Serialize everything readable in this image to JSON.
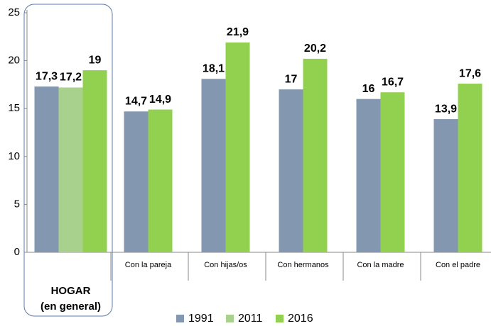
{
  "chart_data": {
    "type": "bar",
    "categories": [
      "HOGAR (en general)",
      "Con la pareja",
      "Con hijas/os",
      "Con hermanos",
      "Con la madre",
      "Con el padre"
    ],
    "series": [
      {
        "name": "1991",
        "color": "#8497b0",
        "values": [
          17.3,
          14.7,
          18.1,
          17,
          16,
          13.9
        ],
        "value_labels": [
          "17,3",
          "14,7",
          "18,1",
          "17",
          "16",
          "13,9"
        ]
      },
      {
        "name": "2011",
        "color": "#a9d18e",
        "values": [
          17.2,
          null,
          null,
          null,
          null,
          null
        ],
        "value_labels": [
          "17,2",
          null,
          null,
          null,
          null,
          null
        ]
      },
      {
        "name": "2016",
        "color": "#92d050",
        "values": [
          19,
          14.9,
          21.9,
          20.2,
          16.7,
          17.6
        ],
        "value_labels": [
          "19",
          "14,9",
          "21,9",
          "20,2",
          "16,7",
          "17,6"
        ]
      }
    ],
    "ylim": [
      0,
      25
    ],
    "yticks": [
      0,
      5,
      10,
      15,
      20,
      25
    ],
    "grid": false,
    "legend": "bottom"
  }
}
